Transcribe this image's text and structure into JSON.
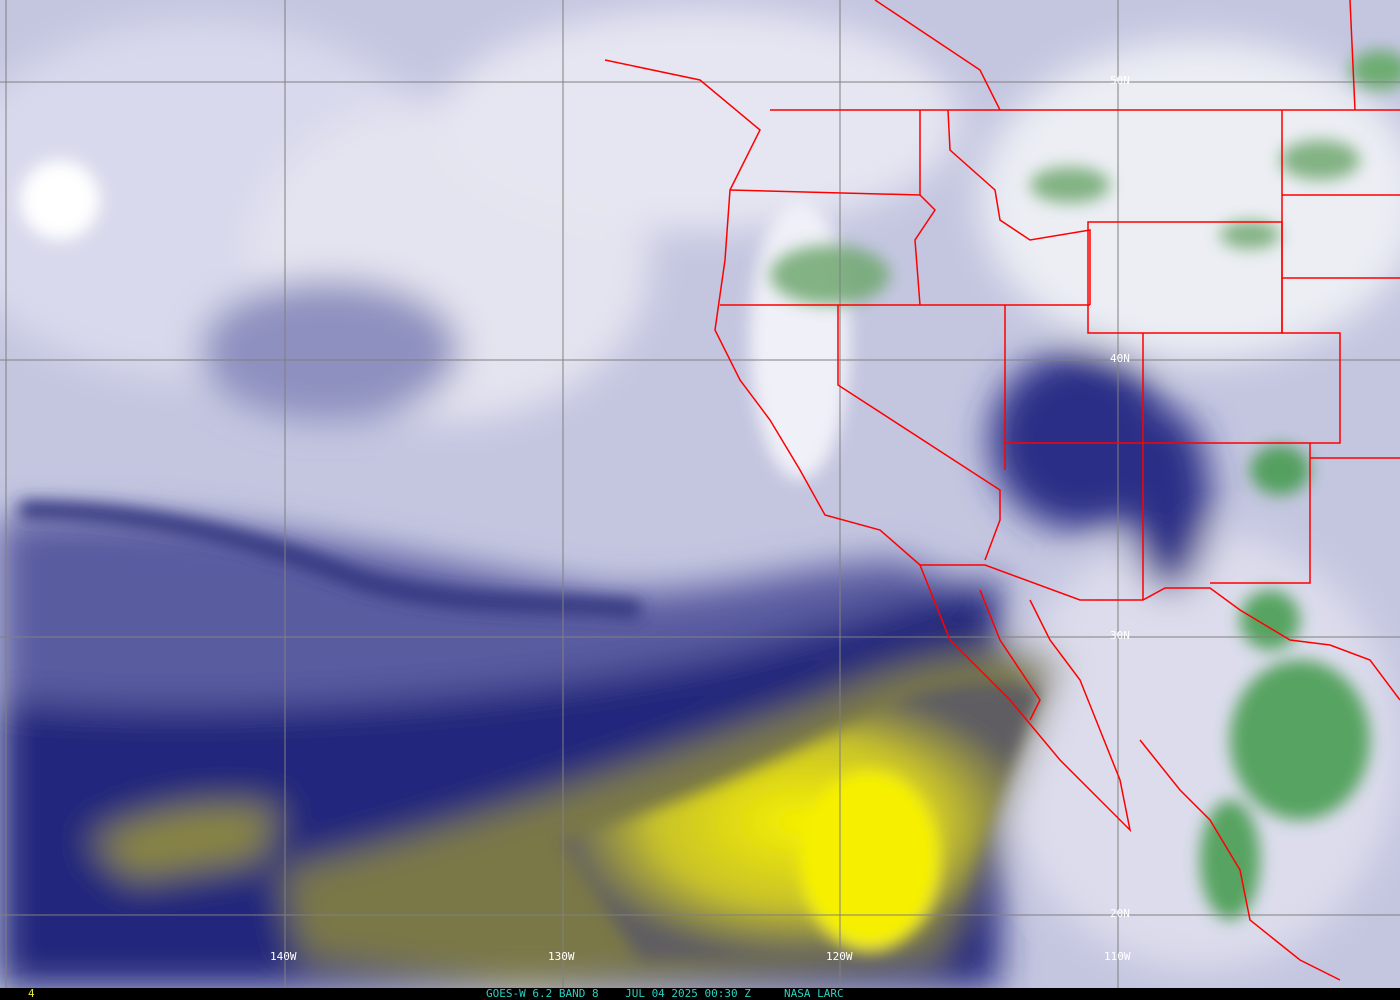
{
  "image": {
    "product": "water-vapor satellite imagery",
    "colors": {
      "dry": "#e8e800",
      "moist_deep": "#1c1f78",
      "mid": "#a9abd2",
      "high_cloud": "#f2f2f8",
      "convective": "#3d9a45",
      "borders": "#ff0000",
      "grid": "#808080"
    }
  },
  "grid": {
    "lat_labels": [
      "50N",
      "40N",
      "30N",
      "20N"
    ],
    "lon_labels": [
      "140W",
      "130W",
      "120W",
      "110W"
    ]
  },
  "footer": {
    "frame_number": "4",
    "caption": "GOES-W 6.2 BAND 8    JUL 04 2025 00:30 Z     NASA LARC"
  }
}
